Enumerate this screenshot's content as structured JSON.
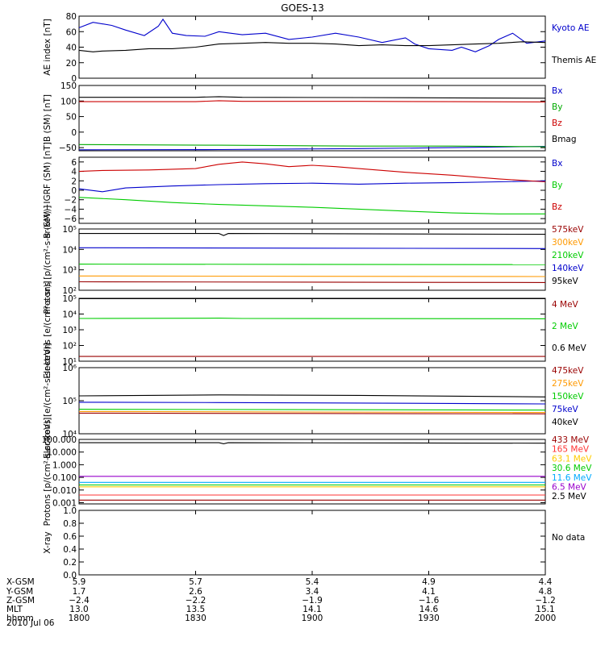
{
  "title": "GOES-13",
  "date": "2010 Jul 06",
  "chart_data": [
    {
      "type": "line",
      "ylabel": "AE index [nT]",
      "ylim": [
        0,
        80
      ],
      "ytick_labels": [
        "0",
        "20",
        "40",
        "60",
        "80"
      ],
      "ticks": [
        0,
        20,
        40,
        60,
        80
      ],
      "series": [
        {
          "name": "Kyoto AE",
          "color": "#0000cc",
          "x": [
            0,
            0.03,
            0.07,
            0.1,
            0.14,
            0.17,
            0.18,
            0.2,
            0.23,
            0.27,
            0.3,
            0.35,
            0.4,
            0.45,
            0.5,
            0.55,
            0.6,
            0.65,
            0.7,
            0.72,
            0.75,
            0.8,
            0.82,
            0.85,
            0.88,
            0.9,
            0.93,
            0.96,
            1.0
          ],
          "y": [
            65,
            72,
            68,
            62,
            55,
            67,
            76,
            58,
            55,
            54,
            60,
            56,
            58,
            50,
            53,
            58,
            53,
            46,
            52,
            44,
            38,
            36,
            40,
            34,
            42,
            50,
            58,
            45,
            48
          ]
        },
        {
          "name": "Themis AE",
          "color": "#000000",
          "x": [
            0,
            0.03,
            0.05,
            0.1,
            0.15,
            0.2,
            0.25,
            0.3,
            0.35,
            0.4,
            0.45,
            0.5,
            0.55,
            0.6,
            0.65,
            0.7,
            0.75,
            0.8,
            0.85,
            0.9,
            0.95,
            1.0
          ],
          "y": [
            36,
            34,
            35,
            36,
            38,
            38,
            40,
            44,
            45,
            46,
            45,
            45,
            44,
            42,
            43,
            42,
            42,
            43,
            44,
            45,
            47,
            46
          ]
        }
      ]
    },
    {
      "type": "line",
      "ylabel": "B (SM) [nT]",
      "ylim": [
        -60,
        150
      ],
      "ytick_labels": [
        "−50",
        "0",
        "50",
        "100",
        "150"
      ],
      "ticks": [
        -50,
        0,
        50,
        100,
        150
      ],
      "series": [
        {
          "name": "Bx",
          "color": "#0000cc",
          "x": [
            0,
            0.3,
            0.6,
            0.8,
            1.0
          ],
          "y": [
            -57,
            -56,
            -53,
            -50,
            -46
          ]
        },
        {
          "name": "By",
          "color": "#00aa00",
          "x": [
            0,
            0.3,
            0.6,
            0.8,
            1.0
          ],
          "y": [
            -40,
            -42,
            -45,
            -45,
            -47
          ]
        },
        {
          "name": "Bz",
          "color": "#cc0000",
          "x": [
            0,
            0.25,
            0.3,
            0.35,
            0.6,
            0.8,
            1.0
          ],
          "y": [
            98,
            98,
            101,
            99,
            99,
            98,
            97
          ]
        },
        {
          "name": "Bmag",
          "color": "#000000",
          "x": [
            0,
            0.25,
            0.3,
            0.35,
            0.6,
            0.8,
            1.0
          ],
          "y": [
            112,
            112,
            114,
            112,
            111,
            110,
            109
          ]
        }
      ]
    },
    {
      "type": "line",
      "ylabel": "B (SM)−IGRF (SM) [nT]",
      "ylim": [
        -7,
        7
      ],
      "ytick_labels": [
        "−6",
        "−4",
        "−2",
        "0",
        "2",
        "4",
        "6"
      ],
      "ticks": [
        -6,
        -4,
        -2,
        0,
        2,
        4,
        6
      ],
      "series": [
        {
          "name": "Bx",
          "color": "#0000cc",
          "x": [
            0,
            0.05,
            0.1,
            0.2,
            0.3,
            0.4,
            0.5,
            0.6,
            0.7,
            0.8,
            0.9,
            1.0
          ],
          "y": [
            0.3,
            -0.3,
            0.5,
            0.9,
            1.2,
            1.4,
            1.5,
            1.3,
            1.5,
            1.6,
            1.8,
            2.0
          ]
        },
        {
          "name": "By",
          "color": "#00cc00",
          "x": [
            0,
            0.1,
            0.2,
            0.3,
            0.4,
            0.5,
            0.6,
            0.7,
            0.8,
            0.9,
            1.0
          ],
          "y": [
            -1.5,
            -2.0,
            -2.6,
            -3.0,
            -3.3,
            -3.6,
            -4.0,
            -4.4,
            -4.8,
            -5.0,
            -5.0
          ]
        },
        {
          "name": "Bz",
          "color": "#cc0000",
          "x": [
            0,
            0.05,
            0.15,
            0.25,
            0.3,
            0.35,
            0.4,
            0.45,
            0.5,
            0.55,
            0.6,
            0.7,
            0.8,
            0.9,
            1.0
          ],
          "y": [
            4.0,
            4.2,
            4.3,
            4.6,
            5.5,
            6.0,
            5.6,
            5.0,
            5.3,
            5.0,
            4.6,
            3.8,
            3.2,
            2.4,
            1.8
          ]
        }
      ]
    },
    {
      "type": "line",
      "ylabel": "Protons [p/(cm²-s-sr-keV)]",
      "scale": "log",
      "ylim": [
        100,
        100000
      ],
      "ytick_labels": [
        "10²",
        "10³",
        "10⁴",
        "10⁵"
      ],
      "ticks": [
        100,
        1000,
        10000,
        100000
      ],
      "series": [
        {
          "name": "575keV",
          "color": "#990000",
          "x": [
            0,
            1.0
          ],
          "y": [
            260,
            240
          ]
        },
        {
          "name": "300keV",
          "color": "#ff9900",
          "x": [
            0,
            1.0
          ],
          "y": [
            500,
            470
          ]
        },
        {
          "name": "210keV",
          "color": "#00cc00",
          "x": [
            0,
            1.0
          ],
          "y": [
            1900,
            1800
          ]
        },
        {
          "name": "140keV",
          "color": "#0000cc",
          "x": [
            0,
            1.0
          ],
          "y": [
            12000,
            11000
          ]
        },
        {
          "name": "95keV",
          "color": "#000000",
          "x": [
            0,
            0.3,
            0.31,
            0.32,
            1.0
          ],
          "y": [
            60000,
            60000,
            48000,
            60000,
            55000
          ]
        }
      ]
    },
    {
      "type": "line",
      "ylabel": "Electrons [e/(cm²-s-sr)]",
      "scale": "log",
      "ylim": [
        10,
        100000
      ],
      "ytick_labels": [
        "10¹",
        "10²",
        "10³",
        "10⁴",
        "10⁵"
      ],
      "ticks": [
        10,
        100,
        1000,
        10000,
        100000
      ],
      "series": [
        {
          "name": "4 MeV",
          "color": "#990000",
          "x": [
            0,
            1.0
          ],
          "y": [
            20,
            20
          ]
        },
        {
          "name": "2 MeV",
          "color": "#00cc00",
          "x": [
            0,
            0.3,
            0.35,
            1.0
          ],
          "y": [
            5200,
            5500,
            5200,
            5000
          ]
        },
        {
          "name": "0.6 MeV",
          "color": "#000000",
          "x": [
            0,
            1.0
          ],
          "y": [
            95000,
            95000
          ]
        }
      ]
    },
    {
      "type": "line",
      "ylabel": "Electrons [e/(cm²-s-sr-keV)]",
      "scale": "log",
      "ylim": [
        10000,
        1000000
      ],
      "ytick_labels": [
        "10⁴",
        "10⁵",
        "10⁶"
      ],
      "ticks": [
        10000,
        100000,
        1000000
      ],
      "series": [
        {
          "name": "475keV",
          "color": "#990000",
          "x": [
            0,
            1.0
          ],
          "y": [
            42000,
            40000
          ]
        },
        {
          "name": "275keV",
          "color": "#ff9900",
          "x": [
            0,
            1.0
          ],
          "y": [
            47000,
            44000
          ]
        },
        {
          "name": "150keV",
          "color": "#00cc00",
          "x": [
            0,
            1.0
          ],
          "y": [
            55000,
            52000
          ]
        },
        {
          "name": "75keV",
          "color": "#0000cc",
          "x": [
            0,
            0.3,
            0.6,
            1.0
          ],
          "y": [
            90000,
            88000,
            85000,
            80000
          ]
        },
        {
          "name": "40keV",
          "color": "#000000",
          "x": [
            0,
            0.3,
            0.6,
            1.0
          ],
          "y": [
            140000,
            150000,
            145000,
            130000
          ]
        }
      ]
    },
    {
      "type": "line",
      "ylabel": "Protons [p/(cm²-s-sr-keV)]",
      "scale": "log",
      "ylim": [
        0.0008,
        100
      ],
      "ytick_labels": [
        "0.001",
        "0.010",
        "0.100",
        "1.000",
        "10.000",
        "100.000"
      ],
      "ticks": [
        0.001,
        0.01,
        0.1,
        1,
        10,
        100
      ],
      "series": [
        {
          "name": "433 MeV",
          "color": "#990000",
          "x": [
            0,
            1.0
          ],
          "y": [
            0.0016,
            0.0016
          ]
        },
        {
          "name": "165 MeV",
          "color": "#ff3333",
          "x": [
            0,
            1.0
          ],
          "y": [
            0.004,
            0.004
          ]
        },
        {
          "name": "63.1 MeV",
          "color": "#ffcc00",
          "x": [
            0,
            1.0
          ],
          "y": [
            0.018,
            0.018
          ]
        },
        {
          "name": "30.6 MeV",
          "color": "#00cc00",
          "x": [
            0,
            1.0
          ],
          "y": [
            0.025,
            0.025
          ]
        },
        {
          "name": "11.6 MeV",
          "color": "#00aaff",
          "x": [
            0,
            1.0
          ],
          "y": [
            0.04,
            0.04
          ]
        },
        {
          "name": "6.5 MeV",
          "color": "#9900cc",
          "x": [
            0,
            1.0
          ],
          "y": [
            0.12,
            0.12
          ]
        },
        {
          "name": "2.5 MeV",
          "color": "#000000",
          "x": [
            0,
            0.3,
            0.31,
            0.32,
            1.0
          ],
          "y": [
            55,
            55,
            45,
            55,
            50
          ]
        }
      ]
    },
    {
      "type": "line",
      "ylabel": "X-ray",
      "ylim": [
        0,
        1
      ],
      "ytick_labels": [
        "0.0",
        "0.2",
        "0.4",
        "0.6",
        "0.8",
        "1.0"
      ],
      "ticks": [
        0,
        0.2,
        0.4,
        0.6,
        0.8,
        1.0
      ],
      "series": [],
      "note": "No data"
    }
  ],
  "xaxis": {
    "rows": [
      {
        "label": "X-GSM",
        "values": [
          "5.9",
          "5.7",
          "5.4",
          "4.9",
          "4.4"
        ]
      },
      {
        "label": "Y-GSM",
        "values": [
          "1.7",
          "2.6",
          "3.4",
          "4.1",
          "4.8"
        ]
      },
      {
        "label": "Z-GSM",
        "values": [
          "−2.4",
          "−2.2",
          "−1.9",
          "−1.6",
          "−1.2"
        ]
      },
      {
        "label": "MLT",
        "values": [
          "13.0",
          "13.5",
          "14.1",
          "14.6",
          "15.1"
        ]
      },
      {
        "label": "hhmm",
        "values": [
          "1800",
          "1830",
          "1900",
          "1930",
          "2000"
        ]
      }
    ]
  }
}
